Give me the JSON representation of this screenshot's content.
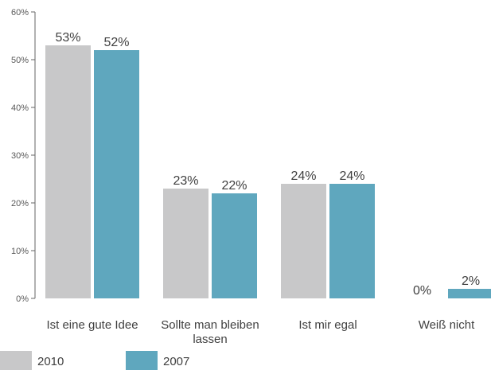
{
  "chart_data": {
    "type": "bar",
    "categories": [
      "Ist eine gute Idee",
      "Sollte man bleiben lassen",
      "Ist mir egal",
      "Weiß nicht"
    ],
    "category_lines": [
      [
        "Ist eine gute Idee"
      ],
      [
        "Sollte man bleiben",
        "lassen"
      ],
      [
        "Ist mir egal"
      ],
      [
        "Weiß nicht"
      ]
    ],
    "series": [
      {
        "name": "2010",
        "values": [
          53,
          23,
          24,
          0
        ],
        "labels": [
          "53%",
          "23%",
          "24%",
          "0%"
        ],
        "color": "#c8c8c9"
      },
      {
        "name": "2007",
        "values": [
          52,
          22,
          24,
          2
        ],
        "labels": [
          "52%",
          "22%",
          "24%",
          "2%"
        ],
        "color": "#5fa7be"
      }
    ],
    "y_ticks": [
      {
        "value": 0,
        "label": "0%"
      },
      {
        "value": 10,
        "label": "10%"
      },
      {
        "value": 20,
        "label": "20%"
      },
      {
        "value": 30,
        "label": "30%"
      },
      {
        "value": 40,
        "label": "40%"
      },
      {
        "value": 50,
        "label": "50%"
      },
      {
        "value": 60,
        "label": "60%"
      }
    ],
    "ylim": [
      0,
      60
    ],
    "title": "",
    "xlabel": "",
    "ylabel": "",
    "grid": false,
    "legend_position": "bottom-left",
    "axis_color": "#666666"
  }
}
